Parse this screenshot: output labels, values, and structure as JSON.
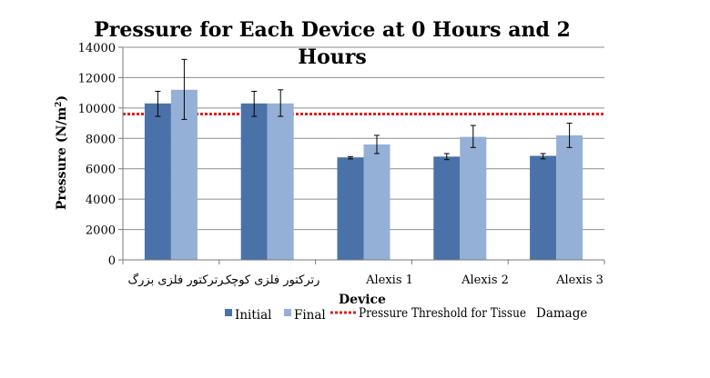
{
  "chart_data": {
    "type": "bar",
    "title_line1": "Pressure  for Each Device at 0 Hours and 2",
    "title_line2": "Hours",
    "xlabel": "Device",
    "ylabel": "Pressure (N/m",
    "ylabel_sup": "2",
    "ylabel_close": ")",
    "ylim": [
      0,
      14000
    ],
    "yticks": [
      0,
      2000,
      4000,
      6000,
      8000,
      10000,
      12000,
      14000
    ],
    "categories": [
      "رترکتور فلزی بزرگ",
      "رترکتور فلزی کوچک",
      "Alexis 1",
      "Alexis 2",
      "Alexis 3"
    ],
    "series": [
      {
        "name": "Initial",
        "color": "#4a72a8",
        "values": [
          10300,
          10300,
          6750,
          6800,
          6850
        ],
        "err_low": [
          9450,
          9450,
          6650,
          6600,
          6650
        ],
        "err_high": [
          11100,
          11100,
          6800,
          7000,
          7000
        ]
      },
      {
        "name": "Final",
        "color": "#95b0d6",
        "values": [
          11200,
          10300,
          7600,
          8100,
          8200
        ],
        "err_low": [
          9250,
          9450,
          7000,
          7400,
          7400
        ],
        "err_high": [
          13200,
          11200,
          8200,
          8850,
          9000
        ]
      }
    ],
    "threshold": {
      "name": "Pressure Threshold for Tissue",
      "value": 9600,
      "color": "#e02020"
    },
    "legend_extra": "Damage",
    "grid": true,
    "legend_position": "bottom"
  }
}
